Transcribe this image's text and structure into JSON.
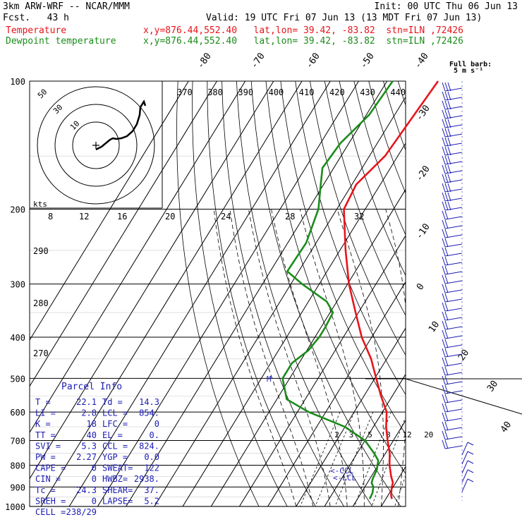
{
  "header": {
    "model": "3km ARW-WRF -- NCAR/MMM",
    "init": "Init: 00 UTC Thu 06 Jun 13",
    "fcst": "Fcst.   43 h",
    "valid": "Valid: 19 UTC Fri 07 Jun 13 (13 MDT Fri 07 Jun 13)",
    "temp_label": "Temperature",
    "dew_label": "Dewpoint temperature",
    "loc_info": "x,y=876.44,552.40   lat,lon= 39.42, -83.82  stn=ILN ,72426",
    "loc_info2": "x,y=876.44,552.40   lat,lon= 39.42, -83.82  stn=ILN ,72426"
  },
  "barb_legend": {
    "line1": "Full barb:",
    "line2": "5 m s⁻¹"
  },
  "hodograph": {
    "units": "kts",
    "ring_labels": [
      "10",
      "30",
      "50"
    ]
  },
  "parcel_info": {
    "title": "Parcel Info",
    "rows": [
      [
        "T  =",
        "22.1",
        "Td =",
        "14.3"
      ],
      [
        "LI =",
        "2.8",
        "LCL =",
        "854."
      ],
      [
        "K  =",
        "18",
        "LFC =",
        "0"
      ],
      [
        "TT =",
        "40",
        "EL  =",
        "0."
      ],
      [
        "SVI =",
        "5.3",
        "CCL =",
        "824."
      ],
      [
        "PW =",
        "2.27",
        "YGP =",
        "0.0"
      ],
      [
        "CAPE =",
        "0",
        "SWEAT=",
        "122"
      ],
      [
        "CIN =",
        "0",
        "HWBZ=",
        "2938."
      ],
      [
        "Tc =",
        "24.3",
        "SHEAR=",
        "37."
      ],
      [
        "SREH =",
        "0",
        "LAPSE=",
        "5.2"
      ],
      [
        "CELL =",
        "238/29",
        "",
        ""
      ]
    ]
  },
  "annotations": {
    "ccl": "<-CCL",
    "lcl": "<-LCL",
    "m": "M"
  },
  "colors": {
    "temperature": "#e8141b",
    "dewpoint": "#1a8c1a",
    "barbs": "#1c1cb4"
  },
  "chart_data": {
    "type": "line",
    "title": "",
    "ylabel": "",
    "pressure_levels": [
      100,
      200,
      300,
      400,
      500,
      600,
      700,
      800,
      900,
      1000
    ],
    "isotherm_labels": [
      "-80",
      "-70",
      "-60",
      "-50",
      "-40",
      "-30",
      "-20",
      "-10",
      "0",
      "10",
      "20",
      "30",
      "40"
    ],
    "theta_labels": [
      "370",
      "380",
      "390",
      "400",
      "410",
      "420",
      "430",
      "440"
    ],
    "dry_adiabat_labels": [
      "290",
      "280",
      "270"
    ],
    "mixing_ratio_labels": [
      "2",
      "3",
      "5",
      "8",
      "12",
      "20"
    ],
    "hodo_speed_labels": [
      "8",
      "12",
      "16",
      "20",
      "24",
      "28",
      "32"
    ],
    "series": [
      {
        "name": "Temperature",
        "points": [
          [
            100,
            -52.0
          ],
          [
            150,
            -54.5
          ],
          [
            175,
            -58.5
          ],
          [
            200,
            -57.5
          ],
          [
            250,
            -48.0
          ],
          [
            300,
            -39.5
          ],
          [
            350,
            -31.0
          ],
          [
            400,
            -23.5
          ],
          [
            450,
            -15.5
          ],
          [
            500,
            -9.5
          ],
          [
            550,
            -4.0
          ],
          [
            600,
            1.5
          ],
          [
            650,
            4.5
          ],
          [
            700,
            8.0
          ],
          [
            750,
            11.5
          ],
          [
            800,
            14.0
          ],
          [
            850,
            17.0
          ],
          [
            880,
            19.0
          ],
          [
            900,
            19.5
          ],
          [
            940,
            21.0
          ],
          [
            960,
            22.1
          ]
        ]
      },
      {
        "name": "Dewpoint temperature",
        "points": [
          [
            100,
            -68.0
          ],
          [
            120,
            -69.0
          ],
          [
            140,
            -73.0
          ],
          [
            160,
            -74.0
          ],
          [
            175,
            -71.0
          ],
          [
            200,
            -66.5
          ],
          [
            240,
            -63.5
          ],
          [
            280,
            -64.0
          ],
          [
            300,
            -56.0
          ],
          [
            330,
            -43.5
          ],
          [
            350,
            -39.0
          ],
          [
            380,
            -38.5
          ],
          [
            400,
            -38.5
          ],
          [
            430,
            -39.5
          ],
          [
            460,
            -42.5
          ],
          [
            500,
            -42.5
          ],
          [
            560,
            -36.5
          ],
          [
            600,
            -26.0
          ],
          [
            650,
            -10.0
          ],
          [
            700,
            0.0
          ],
          [
            750,
            6.0
          ],
          [
            780,
            9.0
          ],
          [
            820,
            10.5
          ],
          [
            860,
            11.0
          ],
          [
            880,
            11.5
          ],
          [
            900,
            13.0
          ],
          [
            930,
            14.0
          ],
          [
            960,
            14.3
          ]
        ]
      }
    ]
  }
}
